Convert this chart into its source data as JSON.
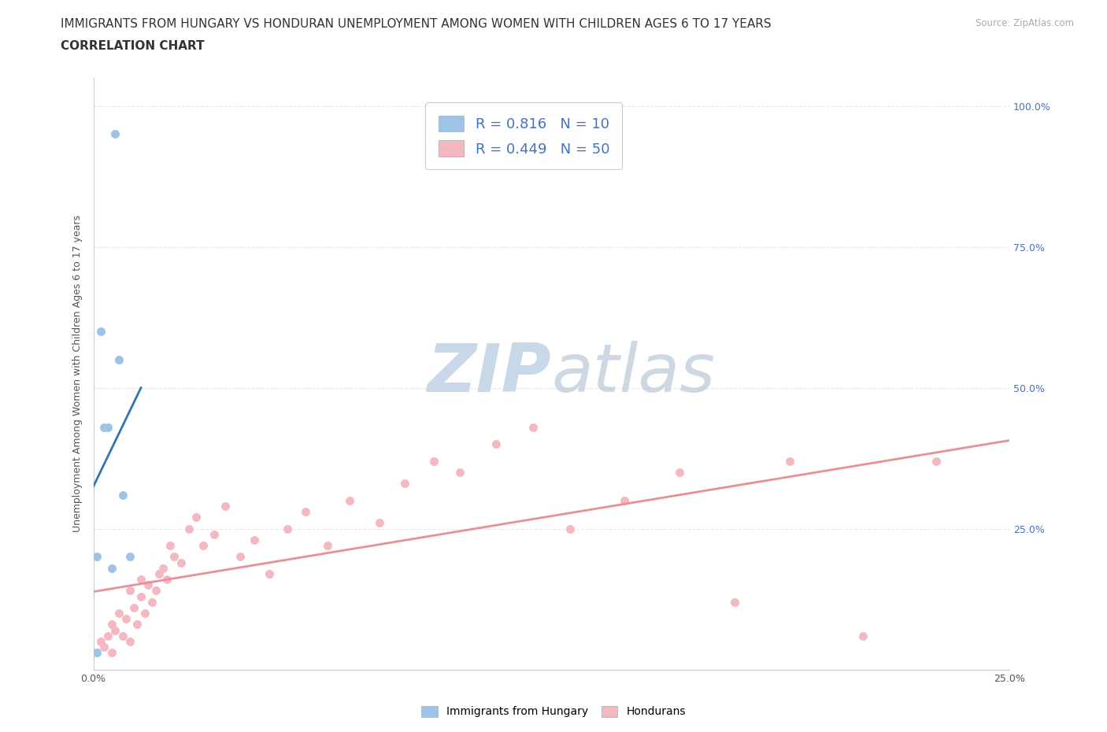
{
  "title_line1": "IMMIGRANTS FROM HUNGARY VS HONDURAN UNEMPLOYMENT AMONG WOMEN WITH CHILDREN AGES 6 TO 17 YEARS",
  "title_line2": "CORRELATION CHART",
  "source_text": "Source: ZipAtlas.com",
  "ylabel": "Unemployment Among Women with Children Ages 6 to 17 years",
  "xlim": [
    0.0,
    0.25
  ],
  "ylim": [
    0.0,
    1.05
  ],
  "background_color": "#ffffff",
  "grid_color": "#e8e8e8",
  "watermark_zip": "ZIP",
  "watermark_atlas": "atlas",
  "watermark_color": "#c8d8e8",
  "blue_color": "#9dc3e6",
  "pink_color": "#f4b8c1",
  "blue_line_color": "#2e75b6",
  "pink_line_color": "#e8909a",
  "legend_label1": "R = 0.816   N = 10",
  "legend_label2": "R = 0.449   N = 50",
  "blue_scatter_x": [
    0.001,
    0.001,
    0.002,
    0.003,
    0.004,
    0.005,
    0.006,
    0.007,
    0.008,
    0.01
  ],
  "blue_scatter_y": [
    0.03,
    0.2,
    0.6,
    0.43,
    0.43,
    0.18,
    0.95,
    0.55,
    0.31,
    0.2
  ],
  "pink_scatter_x": [
    0.002,
    0.003,
    0.004,
    0.005,
    0.005,
    0.006,
    0.007,
    0.008,
    0.009,
    0.01,
    0.01,
    0.011,
    0.012,
    0.013,
    0.013,
    0.014,
    0.015,
    0.016,
    0.017,
    0.018,
    0.019,
    0.02,
    0.021,
    0.022,
    0.024,
    0.026,
    0.028,
    0.03,
    0.033,
    0.036,
    0.04,
    0.044,
    0.048,
    0.053,
    0.058,
    0.064,
    0.07,
    0.078,
    0.085,
    0.093,
    0.1,
    0.11,
    0.12,
    0.13,
    0.145,
    0.16,
    0.175,
    0.19,
    0.21,
    0.23
  ],
  "pink_scatter_y": [
    0.05,
    0.04,
    0.06,
    0.08,
    0.03,
    0.07,
    0.1,
    0.06,
    0.09,
    0.05,
    0.14,
    0.11,
    0.08,
    0.13,
    0.16,
    0.1,
    0.15,
    0.12,
    0.14,
    0.17,
    0.18,
    0.16,
    0.22,
    0.2,
    0.19,
    0.25,
    0.27,
    0.22,
    0.24,
    0.29,
    0.2,
    0.23,
    0.17,
    0.25,
    0.28,
    0.22,
    0.3,
    0.26,
    0.33,
    0.37,
    0.35,
    0.4,
    0.43,
    0.25,
    0.3,
    0.35,
    0.12,
    0.37,
    0.06,
    0.37
  ],
  "title_fontsize": 11,
  "subtitle_fontsize": 11,
  "axis_label_fontsize": 9,
  "tick_fontsize": 9,
  "legend_fontsize": 13
}
